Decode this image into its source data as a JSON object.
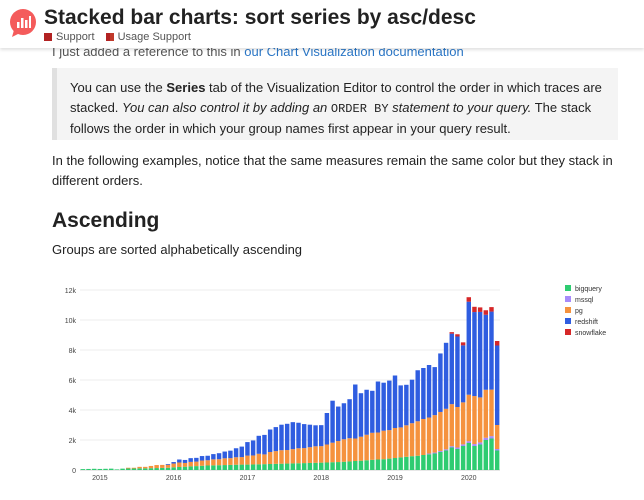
{
  "header": {
    "title": "Stacked bar charts: sort series by asc/desc",
    "breadcrumbs": [
      {
        "label": "Support",
        "color": "#b22222"
      },
      {
        "label": "Usage Support",
        "color": "#b22222"
      }
    ]
  },
  "peek": {
    "prefix": "I just added a reference to this in",
    "link": "our Chart Visualization documentation"
  },
  "note": {
    "p1": "You can use the ",
    "bold": "Series",
    "p2": " tab of the Visualization Editor to control the order in which traces are stacked. ",
    "italic": "You can also control it by adding an ",
    "code": "ORDER BY",
    "italic2": " statement to your query.",
    "p3": " The stack follows the order in which your group names first appear in your query result."
  },
  "paragraph": "In the following examples, notice that the same measures remain the same color but they stack in different orders.",
  "section": {
    "heading": "Ascending",
    "subheading": "Groups are sorted alphabetically ascending"
  },
  "chart_data": {
    "type": "bar",
    "stacked": true,
    "ylim": [
      0,
      12000
    ],
    "y_ticks": [
      0,
      2000,
      4000,
      6000,
      8000,
      10000,
      12000
    ],
    "y_tick_labels": [
      "0",
      "2k",
      "4k",
      "6k",
      "8k",
      "10k",
      "12k"
    ],
    "x_tick_labels": [
      "2015",
      "2016",
      "2017",
      "2018",
      "2019",
      "2020"
    ],
    "x_tick_index": [
      3,
      16,
      29,
      42,
      55,
      68
    ],
    "legend_position": "right",
    "series": [
      {
        "name": "bigquery",
        "color": "#2ecc71",
        "values": [
          60,
          70,
          80,
          70,
          80,
          90,
          40,
          90,
          100,
          100,
          110,
          110,
          120,
          130,
          140,
          150,
          180,
          200,
          220,
          240,
          260,
          280,
          300,
          310,
          320,
          330,
          340,
          350,
          360,
          360,
          370,
          380,
          390,
          400,
          410,
          420,
          430,
          440,
          450,
          460,
          470,
          480,
          490,
          500,
          520,
          530,
          550,
          570,
          600,
          620,
          650,
          680,
          700,
          720,
          760,
          800,
          840,
          880,
          920,
          950,
          1000,
          1050,
          1100,
          1200,
          1300,
          1500,
          1400,
          1600,
          1800,
          1600,
          1700,
          2000,
          2100,
          1300
        ]
      },
      {
        "name": "mssql",
        "color": "#a78bfa",
        "values": [
          0,
          0,
          0,
          0,
          0,
          0,
          0,
          0,
          0,
          0,
          0,
          0,
          0,
          0,
          0,
          0,
          0,
          0,
          0,
          0,
          0,
          0,
          0,
          0,
          0,
          0,
          0,
          0,
          0,
          0,
          0,
          0,
          0,
          0,
          0,
          0,
          0,
          0,
          0,
          0,
          0,
          0,
          0,
          0,
          0,
          0,
          0,
          0,
          0,
          0,
          0,
          0,
          0,
          0,
          0,
          0,
          0,
          0,
          0,
          0,
          0,
          50,
          60,
          70,
          80,
          90,
          100,
          110,
          120,
          130,
          140,
          150,
          160,
          100
        ]
      },
      {
        "name": "pg",
        "color": "#f5923e",
        "values": [
          0,
          0,
          0,
          0,
          0,
          0,
          0,
          0,
          50,
          50,
          100,
          100,
          150,
          200,
          200,
          200,
          250,
          300,
          250,
          300,
          300,
          350,
          350,
          400,
          400,
          450,
          450,
          500,
          500,
          600,
          600,
          700,
          650,
          800,
          850,
          900,
          900,
          950,
          1000,
          1000,
          1050,
          1100,
          1100,
          1200,
          1300,
          1400,
          1500,
          1550,
          1500,
          1600,
          1700,
          1800,
          1800,
          1900,
          1900,
          2000,
          2000,
          2100,
          2200,
          2300,
          2400,
          2400,
          2500,
          2600,
          2700,
          2800,
          2700,
          2800,
          3100,
          3200,
          3000,
          3200,
          3100,
          1600
        ]
      },
      {
        "name": "redshift",
        "color": "#2f5de0",
        "values": [
          0,
          0,
          0,
          0,
          0,
          0,
          0,
          0,
          0,
          0,
          0,
          0,
          0,
          0,
          0,
          50,
          100,
          200,
          200,
          250,
          250,
          300,
          300,
          350,
          400,
          450,
          500,
          600,
          700,
          900,
          1000,
          1200,
          1300,
          1500,
          1600,
          1700,
          1750,
          1800,
          1700,
          1600,
          1500,
          1400,
          1400,
          2100,
          2800,
          2300,
          2400,
          2600,
          3600,
          2900,
          3000,
          2800,
          3400,
          3200,
          3300,
          3500,
          2800,
          2700,
          2900,
          3400,
          3400,
          3500,
          3200,
          3900,
          4400,
          4700,
          4700,
          3800,
          6200,
          5600,
          5700,
          5000,
          5200,
          5300
        ]
      },
      {
        "name": "snowflake",
        "color": "#d62728",
        "values": [
          0,
          0,
          0,
          0,
          0,
          0,
          0,
          0,
          0,
          0,
          0,
          0,
          0,
          0,
          0,
          0,
          0,
          0,
          0,
          0,
          0,
          0,
          0,
          0,
          0,
          0,
          0,
          0,
          0,
          0,
          0,
          0,
          0,
          0,
          0,
          0,
          0,
          0,
          0,
          0,
          0,
          0,
          0,
          0,
          0,
          0,
          0,
          0,
          0,
          0,
          0,
          0,
          0,
          0,
          0,
          0,
          0,
          0,
          0,
          0,
          0,
          0,
          0,
          0,
          0,
          100,
          150,
          200,
          300,
          350,
          300,
          300,
          300,
          300
        ]
      }
    ]
  }
}
